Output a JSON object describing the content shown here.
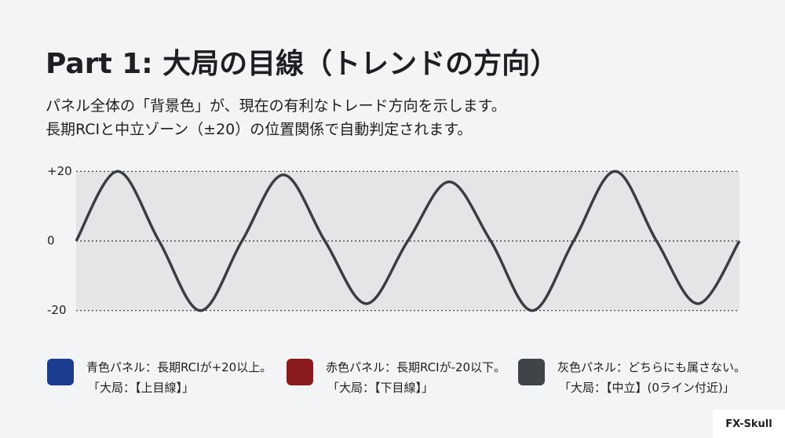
{
  "header": {
    "title": "Part 1: 大局の目線（トレンドの方向）",
    "description": [
      "パネル全体の「背景色」が、現在の有利なトレード方向を示します。",
      "長期RCIと中立ゾーン（±20）の位置関係で自動判定されます。"
    ]
  },
  "chart_data": {
    "type": "line",
    "categories": [
      null,
      null,
      null,
      null,
      null,
      null,
      null,
      null,
      null,
      null,
      null,
      null,
      null,
      null,
      null,
      null,
      null
    ],
    "series": [
      {
        "color": "#3a3d42",
        "values": [
          0,
          20,
          0,
          -20,
          0,
          19,
          0,
          -18,
          0,
          17,
          0,
          -20,
          0,
          20,
          0,
          -18,
          0
        ]
      }
    ],
    "ylim": [
      -23,
      23
    ],
    "yticks": [
      {
        "value": 20,
        "label": "+20"
      },
      0,
      -20
    ],
    "grid": true,
    "band_color": "#e4e5e7"
  },
  "legend": [
    {
      "color": "#1a3d8f",
      "text": "青色パネル：長期RCIが+20以上。",
      "sub": "「大局：【上目線】」"
    },
    {
      "color": "#8b1a1d",
      "text": "赤色パネル：長期RCIが-20以下。",
      "sub": "「大局：【下目線】」"
    },
    {
      "color": "#3f4449",
      "text": "灰色パネル：どちらにも属さない。",
      "sub": "「大局：【中立】(0ライン付近)」"
    }
  ],
  "footer": {
    "brand": "FX-Skull"
  }
}
